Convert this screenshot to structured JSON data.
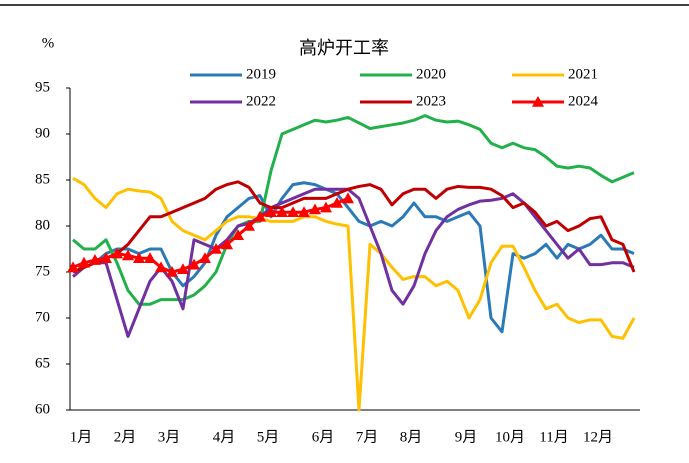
{
  "chart_data": {
    "type": "line",
    "title": "高炉开工率",
    "y_label": "%",
    "categories": [
      "1月",
      null,
      null,
      null,
      "2月",
      null,
      null,
      null,
      "3月",
      null,
      null,
      null,
      null,
      "4月",
      null,
      null,
      null,
      "5月",
      null,
      null,
      null,
      null,
      "6月",
      null,
      null,
      null,
      "7月",
      null,
      null,
      null,
      "8月",
      null,
      null,
      null,
      null,
      "9月",
      null,
      null,
      null,
      "10月",
      null,
      null,
      null,
      "11月",
      null,
      null,
      null,
      "12月",
      null,
      null,
      null,
      null
    ],
    "ylim": [
      60,
      95
    ],
    "yticks": [
      60,
      65,
      70,
      75,
      80,
      85,
      90,
      95
    ],
    "legend": "top",
    "grid": false,
    "series": [
      {
        "name": "2019",
        "color": "#2a7ab8",
        "values": [
          75,
          75.5,
          76,
          77,
          77.5,
          77.5,
          77,
          77.5,
          77.5,
          75,
          73.5,
          74.5,
          76,
          79,
          81,
          82,
          83,
          83.3,
          81,
          83,
          84.5,
          84.7,
          84.5,
          84,
          83.5,
          82,
          80.5,
          80,
          80.5,
          80,
          81,
          82.5,
          81,
          81,
          80.5,
          81,
          81.5,
          80,
          70,
          68.5,
          77,
          76.5,
          77,
          78,
          76.5,
          78,
          77.5,
          78,
          79,
          77.5,
          77.5,
          77
        ]
      },
      {
        "name": "2020",
        "color": "#22b04b",
        "values": [
          78.5,
          77.5,
          77.5,
          78.5,
          76,
          73,
          71.5,
          71.5,
          72,
          72,
          72,
          72.5,
          73.5,
          75,
          78,
          80,
          80.5,
          80.5,
          86,
          90,
          90.5,
          91,
          91.5,
          91.3,
          91.5,
          91.8,
          91.2,
          90.6,
          90.8,
          91,
          91.2,
          91.5,
          92,
          91.5,
          91.3,
          91.4,
          91,
          90.5,
          89,
          88.5,
          89,
          88.5,
          88.3,
          87.5,
          86.5,
          86.3,
          86.5,
          86.3,
          85.5,
          84.8,
          85.3,
          85.8
        ]
      },
      {
        "name": "2021",
        "color": "#ffc000",
        "values": [
          85.2,
          84.5,
          83,
          82,
          83.5,
          84,
          83.8,
          83.7,
          83,
          80.5,
          79.5,
          79,
          78.5,
          79.5,
          80.5,
          81,
          81,
          80.8,
          80.5,
          80.5,
          80.5,
          81,
          81,
          80.5,
          80.2,
          80,
          60,
          78,
          77,
          75.5,
          74.2,
          74.5,
          74.5,
          73.5,
          74,
          73,
          70,
          72,
          76,
          77.8,
          77.8,
          75.5,
          73,
          71,
          71.5,
          70,
          69.5,
          69.8,
          69.8,
          68,
          67.8,
          70
        ]
      },
      {
        "name": "2022",
        "color": "#7030a0",
        "values": [
          74.5,
          75.5,
          76,
          76,
          72,
          68,
          71,
          74,
          75.5,
          74,
          71,
          78.5,
          78,
          77.5,
          78.5,
          80,
          80.3,
          81,
          82,
          82.5,
          83,
          83.5,
          84,
          84,
          84,
          84,
          83,
          80,
          77,
          73,
          71.5,
          73.5,
          77,
          79.5,
          81,
          81.8,
          82.3,
          82.7,
          82.8,
          83,
          83.5,
          82.5,
          81,
          79.5,
          78,
          76.5,
          77.5,
          75.8,
          75.8,
          76,
          76,
          75.5
        ]
      },
      {
        "name": "2023",
        "color": "#c00000",
        "values": [
          75,
          75.5,
          76,
          76.5,
          77,
          78,
          79.5,
          81,
          81,
          81.5,
          82,
          82.5,
          83,
          84,
          84.5,
          84.8,
          84.2,
          82.5,
          82,
          82,
          82.5,
          83,
          83,
          83,
          83.5,
          84,
          84.3,
          84.5,
          84,
          82.3,
          83.5,
          84,
          84,
          83,
          84,
          84.3,
          84.2,
          84.2,
          84,
          83.3,
          82,
          82.5,
          81.5,
          80,
          80.5,
          79.5,
          80,
          80.8,
          81,
          78.5,
          78,
          75
        ]
      },
      {
        "name": "2024",
        "color": "#ff0000",
        "marker": "triangle",
        "values": [
          75.5,
          76,
          76.3,
          76.5,
          77,
          76.8,
          76.5,
          76.5,
          75.5,
          75,
          75.3,
          75.8,
          76.5,
          77.5,
          78,
          79,
          80,
          81,
          81.5,
          81.5,
          81.5,
          81.5,
          81.8,
          82,
          82.5,
          83,
          null,
          null,
          null,
          null,
          null,
          null,
          null,
          null,
          null,
          null,
          null,
          null,
          null,
          null,
          null,
          null,
          null,
          null,
          null,
          null,
          null,
          null,
          null,
          null,
          null,
          null
        ]
      }
    ]
  }
}
